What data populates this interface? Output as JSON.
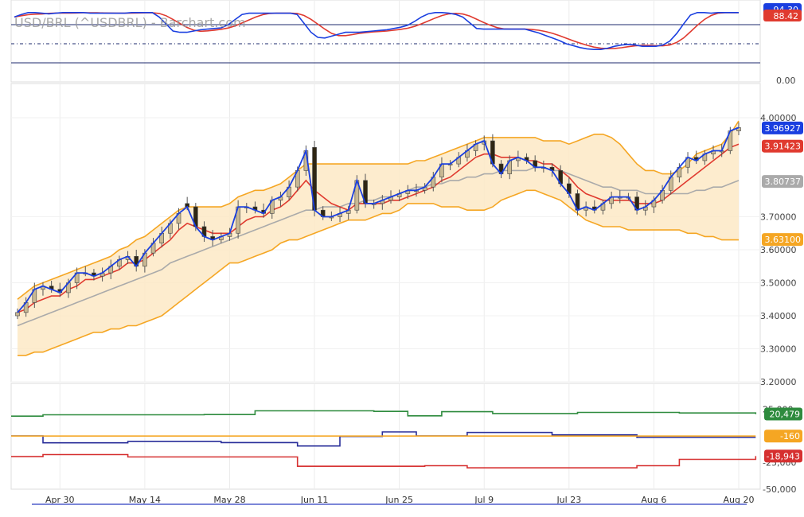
{
  "title": "USD/BRL (^USDBRL) - Barchart.com",
  "x_tick_labels": [
    "Apr 30",
    "May 14",
    "May 28",
    "Jun 11",
    "Jun 25",
    "Jul 9",
    "Jul 23",
    "Aug 6",
    "Aug 20"
  ],
  "colors": {
    "candle_up": "#c8b893",
    "candle_down": "#2e2614",
    "close_line": "#1a3fe0",
    "ma_red": "#e03a2f",
    "ma_gray": "#aaaaaa",
    "band_orange": "#f5a623",
    "band_fill": "#fde9c6",
    "stoch_k": "#1a3fe0",
    "stoch_d": "#e03a2f",
    "cot_green": "#2e8b3e",
    "cot_blue": "#2a2f9a",
    "cot_orange": "#f5a623",
    "cot_red": "#d63030"
  },
  "chart_data": [
    {
      "type": "candlestick",
      "title": "USD/BRL (^USDBRL) - Barchart.com",
      "ylim": [
        3.2,
        4.0
      ],
      "y_ticks": [
        "3.20000",
        "3.30000",
        "3.40000",
        "3.50000",
        "3.60000",
        "3.70000",
        "4.00000"
      ],
      "y_tick_values": [
        3.2,
        3.3,
        3.4,
        3.5,
        3.6,
        3.7,
        4.0
      ],
      "last_value_labels": [
        {
          "label": "3.96927",
          "value": 3.969,
          "color": "#1a3fe0"
        },
        {
          "label": "3.91423",
          "value": 3.914,
          "color": "#e03a2f"
        },
        {
          "label": "3.80737",
          "value": 3.807,
          "color": "#aaaaaa"
        },
        {
          "label": "3.63100",
          "value": 3.631,
          "color": "#f5a623"
        }
      ],
      "x_ticks": [
        "Apr 30",
        "May 14",
        "May 28",
        "Jun 11",
        "Jun 25",
        "Jul 9",
        "Jul 23",
        "Aug 6",
        "Aug 20"
      ],
      "x_tick_index": [
        5,
        15,
        25,
        35,
        45,
        55,
        65,
        75,
        85
      ],
      "close": [
        3.41,
        3.44,
        3.48,
        3.49,
        3.48,
        3.47,
        3.5,
        3.53,
        3.53,
        3.52,
        3.53,
        3.55,
        3.57,
        3.58,
        3.55,
        3.59,
        3.62,
        3.65,
        3.68,
        3.71,
        3.73,
        3.67,
        3.64,
        3.63,
        3.64,
        3.65,
        3.73,
        3.73,
        3.72,
        3.71,
        3.75,
        3.76,
        3.79,
        3.84,
        3.9,
        3.72,
        3.7,
        3.7,
        3.71,
        3.72,
        3.81,
        3.74,
        3.74,
        3.75,
        3.76,
        3.77,
        3.78,
        3.78,
        3.79,
        3.82,
        3.86,
        3.86,
        3.88,
        3.9,
        3.92,
        3.93,
        3.86,
        3.83,
        3.87,
        3.88,
        3.87,
        3.85,
        3.85,
        3.84,
        3.8,
        3.77,
        3.72,
        3.73,
        3.72,
        3.74,
        3.76,
        3.76,
        3.76,
        3.72,
        3.73,
        3.75,
        3.78,
        3.82,
        3.85,
        3.88,
        3.87,
        3.89,
        3.9,
        3.9,
        3.96,
        3.97
      ],
      "open": [
        3.4,
        3.41,
        3.44,
        3.48,
        3.49,
        3.48,
        3.47,
        3.5,
        3.53,
        3.53,
        3.52,
        3.53,
        3.55,
        3.57,
        3.58,
        3.55,
        3.59,
        3.62,
        3.65,
        3.68,
        3.74,
        3.73,
        3.67,
        3.64,
        3.63,
        3.64,
        3.65,
        3.73,
        3.73,
        3.72,
        3.71,
        3.75,
        3.76,
        3.79,
        3.84,
        3.91,
        3.72,
        3.7,
        3.7,
        3.71,
        3.72,
        3.81,
        3.74,
        3.74,
        3.75,
        3.76,
        3.77,
        3.78,
        3.78,
        3.79,
        3.82,
        3.86,
        3.86,
        3.88,
        3.9,
        3.92,
        3.93,
        3.86,
        3.83,
        3.87,
        3.88,
        3.87,
        3.85,
        3.85,
        3.84,
        3.8,
        3.77,
        3.72,
        3.73,
        3.72,
        3.74,
        3.76,
        3.76,
        3.76,
        3.72,
        3.73,
        3.75,
        3.78,
        3.82,
        3.85,
        3.88,
        3.87,
        3.89,
        3.9,
        3.9,
        3.96
      ],
      "ma_fast": [
        3.41,
        3.42,
        3.44,
        3.45,
        3.46,
        3.46,
        3.48,
        3.49,
        3.51,
        3.51,
        3.52,
        3.53,
        3.54,
        3.56,
        3.56,
        3.57,
        3.59,
        3.61,
        3.63,
        3.66,
        3.68,
        3.67,
        3.66,
        3.65,
        3.65,
        3.65,
        3.67,
        3.69,
        3.7,
        3.7,
        3.72,
        3.73,
        3.75,
        3.78,
        3.81,
        3.78,
        3.76,
        3.74,
        3.73,
        3.72,
        3.74,
        3.74,
        3.74,
        3.74,
        3.75,
        3.75,
        3.76,
        3.77,
        3.78,
        3.79,
        3.81,
        3.82,
        3.84,
        3.86,
        3.88,
        3.89,
        3.89,
        3.88,
        3.88,
        3.88,
        3.87,
        3.87,
        3.86,
        3.86,
        3.84,
        3.82,
        3.79,
        3.77,
        3.76,
        3.75,
        3.75,
        3.75,
        3.75,
        3.74,
        3.74,
        3.74,
        3.75,
        3.77,
        3.79,
        3.81,
        3.83,
        3.85,
        3.87,
        3.89,
        3.91,
        3.92
      ],
      "ma_slow": [
        3.37,
        3.38,
        3.39,
        3.4,
        3.41,
        3.42,
        3.43,
        3.44,
        3.45,
        3.46,
        3.47,
        3.48,
        3.49,
        3.5,
        3.51,
        3.52,
        3.53,
        3.54,
        3.56,
        3.57,
        3.58,
        3.59,
        3.6,
        3.61,
        3.62,
        3.63,
        3.64,
        3.65,
        3.66,
        3.67,
        3.68,
        3.69,
        3.7,
        3.71,
        3.72,
        3.72,
        3.73,
        3.73,
        3.73,
        3.74,
        3.74,
        3.75,
        3.75,
        3.76,
        3.76,
        3.77,
        3.78,
        3.79,
        3.79,
        3.8,
        3.8,
        3.81,
        3.81,
        3.82,
        3.82,
        3.83,
        3.83,
        3.84,
        3.84,
        3.84,
        3.84,
        3.85,
        3.85,
        3.84,
        3.84,
        3.83,
        3.82,
        3.81,
        3.8,
        3.79,
        3.79,
        3.78,
        3.78,
        3.78,
        3.77,
        3.77,
        3.77,
        3.77,
        3.77,
        3.77,
        3.78,
        3.78,
        3.79,
        3.79,
        3.8,
        3.81
      ],
      "band_upper": [
        3.45,
        3.47,
        3.49,
        3.5,
        3.51,
        3.52,
        3.53,
        3.54,
        3.55,
        3.56,
        3.57,
        3.58,
        3.6,
        3.61,
        3.63,
        3.64,
        3.66,
        3.68,
        3.7,
        3.72,
        3.73,
        3.73,
        3.73,
        3.73,
        3.73,
        3.74,
        3.76,
        3.77,
        3.78,
        3.78,
        3.79,
        3.8,
        3.82,
        3.84,
        3.86,
        3.86,
        3.86,
        3.86,
        3.86,
        3.86,
        3.86,
        3.86,
        3.86,
        3.86,
        3.86,
        3.86,
        3.86,
        3.87,
        3.87,
        3.88,
        3.89,
        3.9,
        3.91,
        3.92,
        3.93,
        3.94,
        3.94,
        3.94,
        3.94,
        3.94,
        3.94,
        3.94,
        3.93,
        3.93,
        3.93,
        3.92,
        3.93,
        3.94,
        3.95,
        3.95,
        3.94,
        3.92,
        3.89,
        3.86,
        3.84,
        3.84,
        3.83,
        3.83,
        3.84,
        3.86,
        3.89,
        3.9,
        3.91,
        3.92,
        3.95,
        3.99
      ],
      "band_lower": [
        3.28,
        3.28,
        3.29,
        3.29,
        3.3,
        3.31,
        3.32,
        3.33,
        3.34,
        3.35,
        3.35,
        3.36,
        3.36,
        3.37,
        3.37,
        3.38,
        3.39,
        3.4,
        3.42,
        3.44,
        3.46,
        3.48,
        3.5,
        3.52,
        3.54,
        3.56,
        3.56,
        3.57,
        3.58,
        3.59,
        3.6,
        3.62,
        3.63,
        3.63,
        3.64,
        3.65,
        3.66,
        3.67,
        3.68,
        3.69,
        3.69,
        3.69,
        3.7,
        3.71,
        3.71,
        3.72,
        3.74,
        3.74,
        3.74,
        3.74,
        3.73,
        3.73,
        3.73,
        3.72,
        3.72,
        3.72,
        3.73,
        3.75,
        3.76,
        3.77,
        3.78,
        3.78,
        3.77,
        3.76,
        3.75,
        3.73,
        3.71,
        3.69,
        3.68,
        3.67,
        3.67,
        3.67,
        3.66,
        3.66,
        3.66,
        3.66,
        3.66,
        3.66,
        3.66,
        3.65,
        3.65,
        3.64,
        3.64,
        3.63,
        3.63,
        3.63
      ]
    },
    {
      "type": "line",
      "series": [
        {
          "name": "",
          "color": "#1a3fe0",
          "last_label": "94.30",
          "values": [
            92,
            96,
            99,
            99,
            98,
            97,
            98,
            99,
            99,
            99,
            99,
            98,
            98,
            98,
            98,
            98,
            98,
            99,
            99,
            99,
            99,
            92,
            81,
            70,
            68,
            68,
            70,
            72,
            73,
            74,
            75,
            80,
            88,
            96,
            98,
            98,
            98,
            98,
            98,
            98,
            98,
            96,
            82,
            68,
            60,
            59,
            62,
            65,
            68,
            68,
            68,
            69,
            70,
            71,
            72,
            74,
            76,
            79,
            85,
            92,
            97,
            99,
            99,
            98,
            96,
            92,
            83,
            74,
            73,
            73,
            73,
            73,
            73,
            73,
            73,
            70,
            67,
            63,
            59,
            55,
            50,
            47,
            44,
            42,
            41,
            41,
            43,
            46,
            48,
            49,
            48,
            46,
            46,
            46,
            48,
            54,
            66,
            81,
            95,
            99,
            99,
            98,
            99,
            99,
            99,
            99
          ]
        },
        {
          "name": "",
          "color": "#e03a2f",
          "last_label": "88.42",
          "values": []
        }
      ],
      "y_ticks": [
        "0.00"
      ],
      "guide_lines": [
        80,
        50,
        20
      ]
    },
    {
      "type": "line",
      "ylim": [
        -50000,
        50000
      ],
      "y_ticks": [
        "25,000",
        "-25,000",
        "-50,000"
      ],
      "y_tick_values": [
        25000,
        -25000,
        -50000
      ],
      "last_value_labels": [
        {
          "label": "20,479",
          "value": 20479,
          "color": "#2e8b3e"
        },
        {
          "label": "-160",
          "value": -160,
          "color": "#f5a623"
        },
        {
          "label": "-18,943",
          "value": -18943,
          "color": "#d63030"
        }
      ],
      "series": [
        {
          "name": "",
          "color": "#2e8b3e",
          "steps": [
            [
              0,
              18500
            ],
            [
              3,
              19800
            ],
            [
              22,
              20000
            ],
            [
              28,
              23500
            ],
            [
              42,
              23000
            ],
            [
              46,
              18800
            ],
            [
              50,
              22700
            ],
            [
              56,
              21000
            ],
            [
              66,
              22000
            ],
            [
              78,
              21500
            ],
            [
              87,
              20479
            ]
          ]
        },
        {
          "name": "",
          "color": "#2a2f9a",
          "steps": [
            [
              0,
              0
            ],
            [
              3,
              -6500
            ],
            [
              13,
              -5300
            ],
            [
              24,
              -6300
            ],
            [
              33,
              -9500
            ],
            [
              38,
              -500
            ],
            [
              43,
              3700
            ],
            [
              47,
              0
            ],
            [
              53,
              3200
            ],
            [
              63,
              1000
            ],
            [
              73,
              -1500
            ],
            [
              87,
              -1500
            ]
          ]
        },
        {
          "name": "",
          "color": "#f5a623",
          "steps": [
            [
              0,
              -160
            ],
            [
              87,
              -160
            ]
          ]
        },
        {
          "name": "",
          "color": "#d63030",
          "steps": [
            [
              0,
              -19500
            ],
            [
              3,
              -17500
            ],
            [
              13,
              -19800
            ],
            [
              33,
              -28500
            ],
            [
              48,
              -28000
            ],
            [
              53,
              -30000
            ],
            [
              73,
              -28000
            ],
            [
              78,
              -22000
            ],
            [
              87,
              -18943
            ]
          ]
        }
      ]
    }
  ]
}
